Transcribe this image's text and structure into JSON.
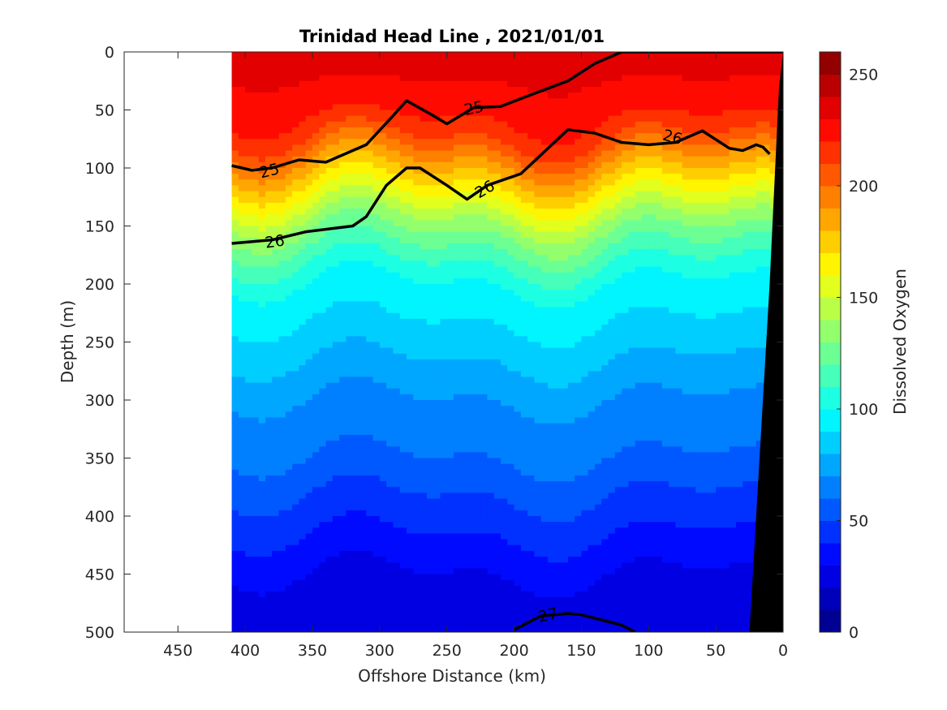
{
  "chart_data": {
    "type": "heatmap",
    "title": "Trinidad Head Line , 2021/01/01",
    "xlabel": "Offshore Distance (km)",
    "ylabel": "Depth (m)",
    "colorbar_label": "Dissolved Oxygen",
    "xlim": [
      490,
      0
    ],
    "ylim": [
      0,
      500
    ],
    "x_reversed": true,
    "y_reversed": true,
    "x_ticks": [
      450,
      400,
      350,
      300,
      250,
      200,
      150,
      100,
      50,
      0
    ],
    "y_ticks": [
      0,
      50,
      100,
      150,
      200,
      250,
      300,
      350,
      400,
      450,
      500
    ],
    "colorbar_ticks": [
      0,
      50,
      100,
      150,
      200,
      250
    ],
    "colorbar_range": [
      0,
      260
    ],
    "colorbar_levels": 26,
    "data_extent_x": [
      410,
      0
    ],
    "field_note_colors": {
      "low": "#00008f",
      "high": "#800000"
    },
    "oxygen_profile": {
      "depths": [
        0,
        50,
        75,
        100,
        125,
        150,
        175,
        200,
        250,
        300,
        350,
        400,
        450,
        500
      ],
      "values": [
        235,
        225,
        210,
        185,
        160,
        135,
        115,
        100,
        85,
        70,
        60,
        45,
        30,
        25
      ]
    },
    "isopycnals": [
      {
        "label": "25",
        "x": [
          410,
          395,
          380,
          360,
          340,
          310,
          290,
          280,
          260,
          250,
          230,
          210,
          190,
          160,
          140,
          120,
          100,
          80,
          60,
          40,
          20,
          5,
          0
        ],
        "y": [
          98,
          102,
          100,
          93,
          95,
          80,
          55,
          42,
          55,
          62,
          48,
          47,
          38,
          25,
          10,
          0,
          0,
          0,
          0,
          0,
          0,
          0,
          0
        ]
      },
      {
        "label": "26",
        "x": [
          410,
          380,
          355,
          320,
          310,
          295,
          280,
          270,
          250,
          235,
          220,
          195,
          160,
          140,
          120,
          100,
          80,
          60,
          40,
          30,
          20,
          15,
          10
        ],
        "y": [
          165,
          162,
          155,
          150,
          142,
          115,
          100,
          100,
          115,
          127,
          115,
          105,
          67,
          70,
          78,
          80,
          78,
          68,
          83,
          85,
          80,
          82,
          88
        ]
      },
      {
        "label": "27",
        "x": [
          200,
          180,
          160,
          150,
          120,
          110
        ],
        "y": [
          498,
          486,
          484,
          485,
          494,
          500
        ]
      }
    ],
    "contour_labels": [
      {
        "text": "25",
        "x": 382,
        "y": 102,
        "angle": -14
      },
      {
        "text": "25",
        "x": 230,
        "y": 48,
        "angle": -12
      },
      {
        "text": "26",
        "x": 82,
        "y": 73,
        "angle": 15
      },
      {
        "text": "26",
        "x": 378,
        "y": 163,
        "angle": -8
      },
      {
        "text": "26",
        "x": 222,
        "y": 118,
        "angle": -30
      },
      {
        "text": "27",
        "x": 175,
        "y": 485,
        "angle": -12
      }
    ],
    "shelf_bottom": {
      "x": [
        0,
        3,
        10,
        25,
        0
      ],
      "y": [
        0,
        30,
        200,
        500,
        500
      ]
    }
  }
}
